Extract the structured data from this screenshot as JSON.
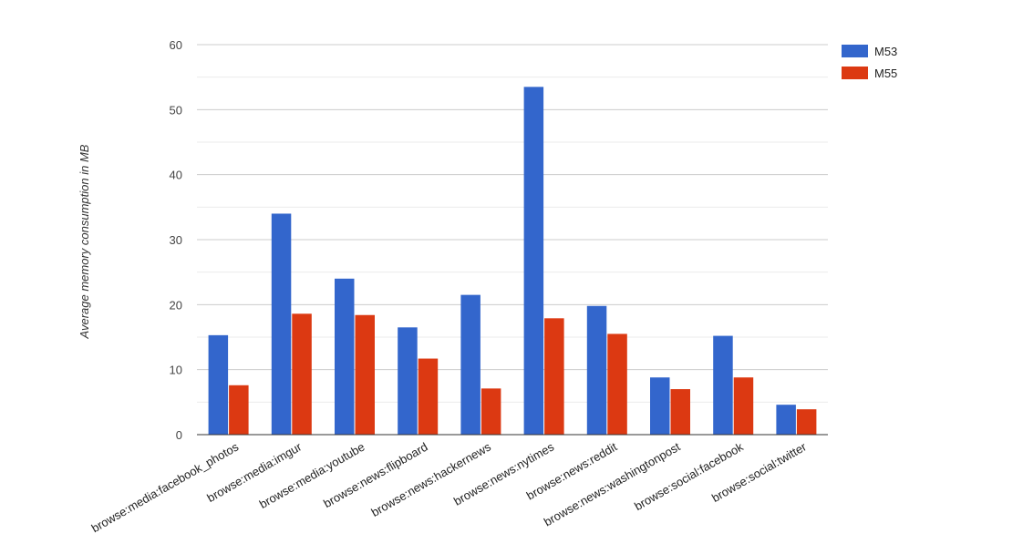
{
  "chart_data": {
    "type": "bar",
    "title": "",
    "xlabel": "",
    "ylabel": "Average memory consumption in MB",
    "ylim": [
      0,
      60
    ],
    "y_ticks": [
      0,
      10,
      20,
      30,
      40,
      50,
      60
    ],
    "grid": true,
    "legend_position": "top-right",
    "categories": [
      "browse:media:facebook_photos",
      "browse:media:imgur",
      "browse:media:youtube",
      "browse:news:flipboard",
      "browse:news:hackernews",
      "browse:news:nytimes",
      "browse:news:reddit",
      "browse:news:washingtonpost",
      "browse:social:facebook",
      "browse:social:twitter"
    ],
    "series": [
      {
        "name": "M53",
        "color": "#3366cc",
        "values": [
          15.3,
          34.0,
          24.0,
          16.5,
          21.5,
          53.5,
          19.8,
          8.8,
          15.2,
          4.6
        ]
      },
      {
        "name": "M55",
        "color": "#dc3912",
        "values": [
          7.6,
          18.6,
          18.4,
          11.7,
          7.1,
          17.9,
          15.5,
          7.0,
          8.8,
          3.9
        ]
      }
    ]
  }
}
